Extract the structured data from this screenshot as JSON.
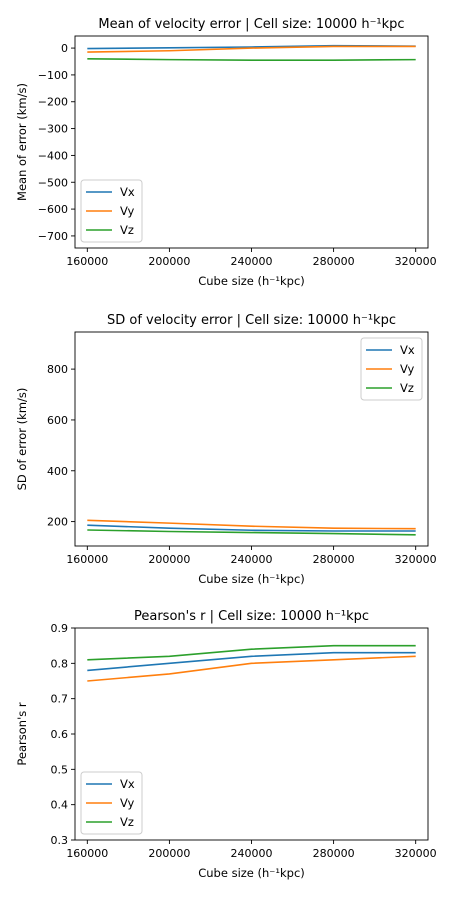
{
  "chart_data": [
    {
      "type": "line",
      "title": "Mean of velocity error | Cell size: 10000 h⁻¹kpc",
      "xlabel": "Cube size (h⁻¹kpc)",
      "ylabel": "Mean of error (km/s)",
      "x": [
        160000,
        200000,
        240000,
        280000,
        320000
      ],
      "xticks": [
        "160000",
        "200000",
        "240000",
        "280000",
        "320000"
      ],
      "xlim": [
        154000,
        326000
      ],
      "yticks": [
        0,
        -100,
        -200,
        -300,
        -400,
        -500,
        -600,
        -700
      ],
      "ytick_labels": [
        "0",
        "−100",
        "−200",
        "−300",
        "−400",
        "−500",
        "−600",
        "−700"
      ],
      "ylim": [
        -745,
        45
      ],
      "legend": "lower-left",
      "grid": false,
      "series": [
        {
          "name": "Vx",
          "color": "#1f77b4",
          "values": [
            -2,
            1,
            4,
            9,
            7
          ]
        },
        {
          "name": "Vy",
          "color": "#ff7f0e",
          "values": [
            -15,
            -10,
            0,
            6,
            6
          ]
        },
        {
          "name": "Vz",
          "color": "#2ca02c",
          "values": [
            -40,
            -43,
            -45,
            -45,
            -43
          ]
        }
      ]
    },
    {
      "type": "line",
      "title": "SD of velocity error | Cell size: 10000 h⁻¹kpc",
      "xlabel": "Cube size (h⁻¹kpc)",
      "ylabel": "SD of error (km/s)",
      "x": [
        160000,
        200000,
        240000,
        280000,
        320000
      ],
      "xticks": [
        "160000",
        "200000",
        "240000",
        "280000",
        "320000"
      ],
      "xlim": [
        154000,
        326000
      ],
      "yticks": [
        200,
        400,
        600,
        800
      ],
      "ytick_labels": [
        "200",
        "400",
        "600",
        "800"
      ],
      "ylim": [
        104,
        946
      ],
      "legend": "top-right",
      "grid": false,
      "series": [
        {
          "name": "Vx",
          "color": "#1f77b4",
          "values": [
            186,
            174,
            166,
            163,
            163
          ]
        },
        {
          "name": "Vy",
          "color": "#ff7f0e",
          "values": [
            205,
            194,
            182,
            174,
            172
          ]
        },
        {
          "name": "Vz",
          "color": "#2ca02c",
          "values": [
            167,
            161,
            157,
            153,
            148
          ]
        }
      ]
    },
    {
      "type": "line",
      "title": "Pearson's r | Cell size: 10000 h⁻¹kpc",
      "xlabel": "Cube size (h⁻¹kpc)",
      "ylabel": "Pearson's r",
      "x": [
        160000,
        200000,
        240000,
        280000,
        320000
      ],
      "xticks": [
        "160000",
        "200000",
        "240000",
        "280000",
        "320000"
      ],
      "xlim": [
        154000,
        326000
      ],
      "yticks": [
        0.3,
        0.4,
        0.5,
        0.6,
        0.7,
        0.8,
        0.9
      ],
      "ytick_labels": [
        "0.3",
        "0.4",
        "0.5",
        "0.6",
        "0.7",
        "0.8",
        "0.9"
      ],
      "ylim": [
        0.3,
        0.9
      ],
      "legend": "lower-left",
      "grid": false,
      "series": [
        {
          "name": "Vx",
          "color": "#1f77b4",
          "values": [
            0.78,
            0.8,
            0.82,
            0.83,
            0.83
          ]
        },
        {
          "name": "Vy",
          "color": "#ff7f0e",
          "values": [
            0.75,
            0.77,
            0.8,
            0.81,
            0.82
          ]
        },
        {
          "name": "Vz",
          "color": "#2ca02c",
          "values": [
            0.81,
            0.82,
            0.84,
            0.85,
            0.85
          ]
        }
      ]
    }
  ]
}
